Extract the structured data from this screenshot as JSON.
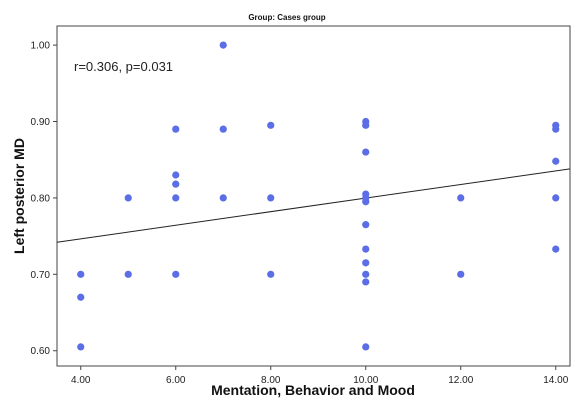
{
  "chart_data": {
    "type": "scatter",
    "title": "Group: Cases group",
    "xlabel": "Mentation, Behavior and Mood",
    "ylabel": "Left posterior MD",
    "annotation": "r=0.306, p=0.031",
    "xlim": [
      3.5,
      14.3
    ],
    "ylim": [
      0.58,
      1.025
    ],
    "x_ticks": [
      4,
      6,
      8,
      10,
      12,
      14
    ],
    "x_tick_labels": [
      "4.00",
      "6.00",
      "8.00",
      "10.00",
      "12.00",
      "14.00"
    ],
    "y_ticks": [
      0.6,
      0.7,
      0.8,
      0.9,
      1.0
    ],
    "y_tick_labels": [
      "0.60",
      "0.70",
      "0.80",
      "0.90",
      "1.00"
    ],
    "grid": false,
    "point_color": "#5b6ee6",
    "fit_line": {
      "x": [
        3.5,
        14.3
      ],
      "y": [
        0.742,
        0.838
      ],
      "color": "#222222"
    },
    "points": [
      {
        "x": 4,
        "y": 0.7
      },
      {
        "x": 4,
        "y": 0.67
      },
      {
        "x": 4,
        "y": 0.605
      },
      {
        "x": 5,
        "y": 0.8
      },
      {
        "x": 5,
        "y": 0.7
      },
      {
        "x": 6,
        "y": 0.89
      },
      {
        "x": 6,
        "y": 0.83
      },
      {
        "x": 6,
        "y": 0.818
      },
      {
        "x": 6,
        "y": 0.8
      },
      {
        "x": 6,
        "y": 0.7
      },
      {
        "x": 7,
        "y": 1.0
      },
      {
        "x": 7,
        "y": 0.89
      },
      {
        "x": 7,
        "y": 0.8
      },
      {
        "x": 8,
        "y": 0.895
      },
      {
        "x": 8,
        "y": 0.8
      },
      {
        "x": 8,
        "y": 0.7
      },
      {
        "x": 10,
        "y": 0.9
      },
      {
        "x": 10,
        "y": 0.895
      },
      {
        "x": 10,
        "y": 0.86
      },
      {
        "x": 10,
        "y": 0.805
      },
      {
        "x": 10,
        "y": 0.8
      },
      {
        "x": 10,
        "y": 0.795
      },
      {
        "x": 10,
        "y": 0.765
      },
      {
        "x": 10,
        "y": 0.733
      },
      {
        "x": 10,
        "y": 0.715
      },
      {
        "x": 10,
        "y": 0.7
      },
      {
        "x": 10,
        "y": 0.69
      },
      {
        "x": 10,
        "y": 0.605
      },
      {
        "x": 12,
        "y": 0.8
      },
      {
        "x": 12,
        "y": 0.7
      },
      {
        "x": 14,
        "y": 0.895
      },
      {
        "x": 14,
        "y": 0.89
      },
      {
        "x": 14,
        "y": 0.848
      },
      {
        "x": 14,
        "y": 0.8
      },
      {
        "x": 14,
        "y": 0.733
      }
    ]
  }
}
